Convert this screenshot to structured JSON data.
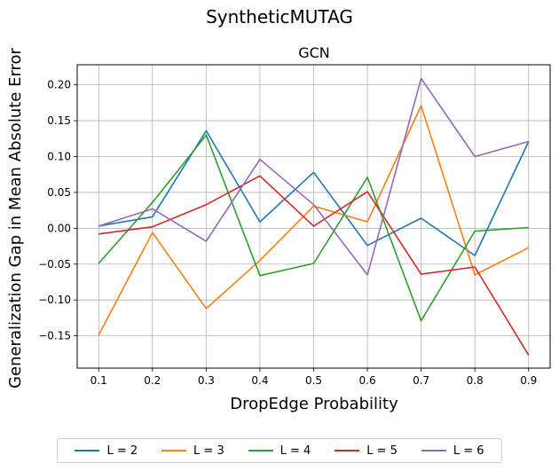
{
  "suptitle": "SyntheticMUTAG",
  "chart_data": {
    "type": "line",
    "title": "GCN",
    "xlabel": "DropEdge Probability",
    "ylabel": "Generalization Gap in Mean Absolute Error",
    "x": [
      0.1,
      0.2,
      0.3,
      0.4,
      0.5,
      0.6,
      0.7,
      0.8,
      0.9
    ],
    "x_ticks": [
      "0.1",
      "0.2",
      "0.3",
      "0.4",
      "0.5",
      "0.6",
      "0.7",
      "0.8",
      "0.9"
    ],
    "y_ticks": [
      "−0.15",
      "−0.10",
      "−0.05",
      "0.00",
      "0.05",
      "0.10",
      "0.15",
      "0.20"
    ],
    "y_tick_values": [
      -0.15,
      -0.1,
      -0.05,
      0.0,
      0.05,
      0.1,
      0.15,
      0.2
    ],
    "xlim": [
      0.06,
      0.94
    ],
    "ylim": [
      -0.195,
      0.228
    ],
    "grid": true,
    "legend_position": "bottom",
    "series": [
      {
        "name": "L = 2",
        "color": "#1f77b4",
        "values": [
          0.003,
          0.016,
          0.136,
          0.009,
          0.078,
          -0.024,
          0.014,
          -0.038,
          0.121
        ]
      },
      {
        "name": "L = 3",
        "color": "#ff7f0e",
        "values": [
          -0.149,
          -0.006,
          -0.112,
          -0.045,
          0.031,
          0.009,
          0.171,
          -0.065,
          -0.027
        ]
      },
      {
        "name": "L = 4",
        "color": "#2ca02c",
        "values": [
          -0.049,
          0.036,
          0.13,
          -0.066,
          -0.049,
          0.071,
          -0.129,
          -0.004,
          0.001
        ]
      },
      {
        "name": "L = 5",
        "color": "#d62728",
        "values": [
          -0.008,
          0.002,
          0.033,
          0.073,
          0.003,
          0.051,
          -0.064,
          -0.054,
          -0.177
        ]
      },
      {
        "name": "L = 6",
        "color": "#9467bd",
        "values": [
          0.003,
          0.027,
          -0.018,
          0.096,
          0.033,
          -0.065,
          0.209,
          0.1,
          0.121
        ]
      }
    ]
  }
}
